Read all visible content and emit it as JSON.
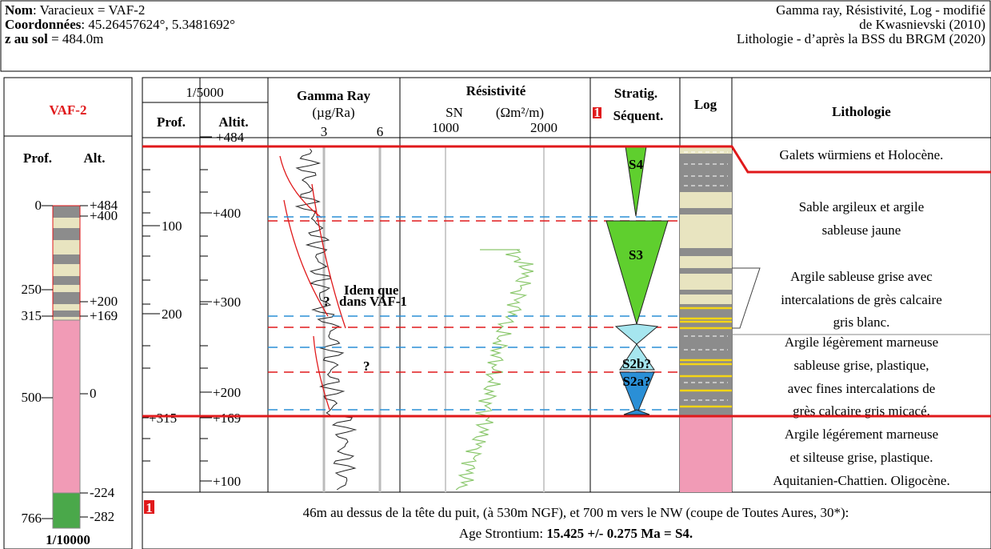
{
  "header": {
    "left": [
      {
        "label": "Nom",
        "value": ": Varacieux = VAF-2"
      },
      {
        "label": "Coordonnées",
        "value": ": 45.26457624°, 5.3481692°"
      },
      {
        "label": "z au sol",
        "value": " = 484.0m"
      }
    ],
    "right": [
      "Gamma ray, Résistivité, Log - modifié",
      "de Kwasnievski (2010)",
      "Lithologie - d’après la BSS du BRGM (2020)"
    ]
  },
  "well_panel": {
    "title": "VAF-2",
    "prof_header": "Prof.",
    "alt_header": "Alt.",
    "depth_labels": [
      "0",
      "250",
      "315",
      "500",
      "766"
    ],
    "alt_labels": [
      "+484",
      "+400",
      "+200",
      "+169",
      "0",
      "-224",
      "-282"
    ],
    "scale": "1/10000"
  },
  "log_panel": {
    "scale": "1/5000",
    "prof_header": "Prof.",
    "alt_header": "Altit.",
    "gamma": {
      "title": "Gamma Ray",
      "unit": "(µg/Ra)",
      "ticks": [
        "3",
        "6"
      ]
    },
    "resistivity": {
      "title": "Résistivité",
      "sn": "SN",
      "unit": "(Ωm²/m)",
      "ticks": [
        "1000",
        "2000"
      ]
    },
    "note_marker": "1",
    "strat": {
      "title": "Stratig.",
      "subtitle": "Séquent.",
      "sequences": [
        "S4",
        "S3",
        "S2b?",
        "S2a?"
      ]
    },
    "log_header": "Log",
    "lithology_header": "Lithologie",
    "prof_labels": [
      "100",
      "200",
      "+315"
    ],
    "alt_labels": [
      "+484",
      "+400",
      "+300",
      "+200",
      "+169",
      "+100"
    ],
    "annotations": [
      "Idem que",
      "dans VAF-1",
      "?",
      "?"
    ],
    "lithology": [
      [
        "Galets würmiens et Holocène."
      ],
      [
        "Sable argileux et argile",
        "sableuse jaune"
      ],
      [
        "Argile sableuse grise avec",
        "intercalations de grès calcaire",
        "gris blanc."
      ],
      [
        "Argile légèrement marneuse",
        "sableuse grise, plastique,",
        "avec fines intercalations de",
        "grès calcaire gris micacé."
      ],
      [
        "Argile légérement marneuse",
        "et silteuse grise, plastique.",
        "Aquitanien-Chattien. Oligocène."
      ]
    ]
  },
  "footnote": {
    "marker": "1",
    "line1": "46m au dessus de la tête du puit, (à 530m NGF), et 700 m vers le NW (coupe de Toutes Aures, 30*):",
    "line2_prefix": "Age Strontium: ",
    "line2_bold": "15.425 +/- 0.275 Ma = S4."
  }
}
